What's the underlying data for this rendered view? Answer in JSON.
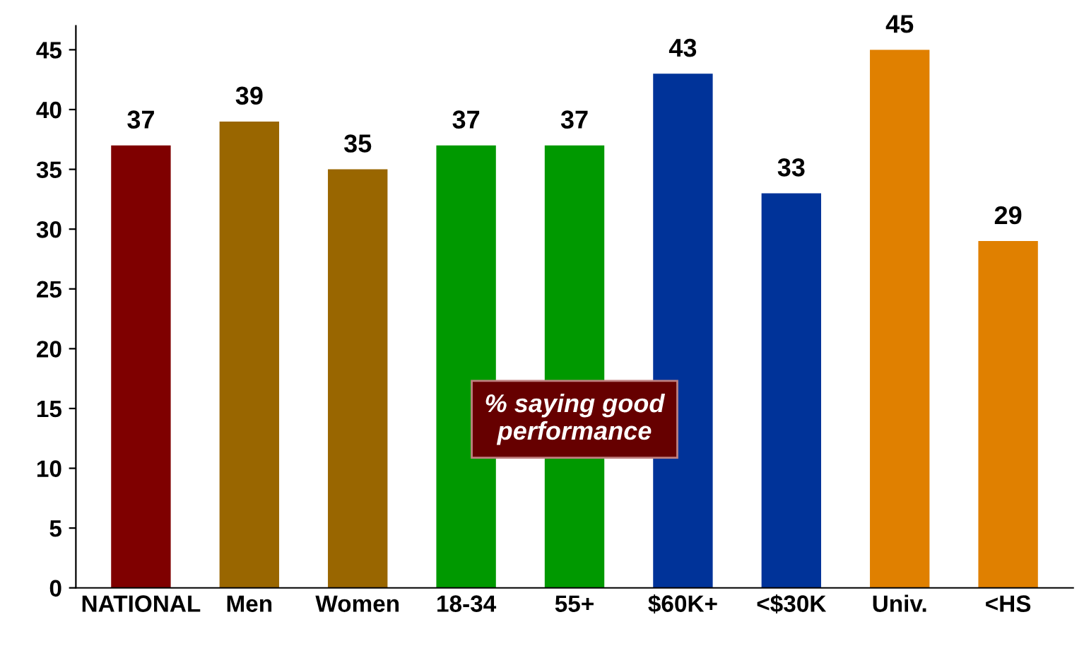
{
  "chart_data": {
    "type": "bar",
    "categories": [
      "NATIONAL",
      "Men",
      "Women",
      "18-34",
      "55+",
      "$60K+",
      "<$30K",
      "Univ.",
      "<HS"
    ],
    "values": [
      37,
      39,
      35,
      37,
      37,
      43,
      33,
      45,
      29
    ],
    "colors": [
      "#7f0000",
      "#996600",
      "#996600",
      "#009900",
      "#009900",
      "#003399",
      "#003399",
      "#e08000",
      "#e08000"
    ],
    "ylim": [
      0,
      47
    ],
    "yticks": [
      0,
      5,
      10,
      15,
      20,
      25,
      30,
      35,
      40,
      45
    ],
    "data_labels": true,
    "grid": false,
    "annotations": [
      "% saying good\nperformance"
    ]
  }
}
